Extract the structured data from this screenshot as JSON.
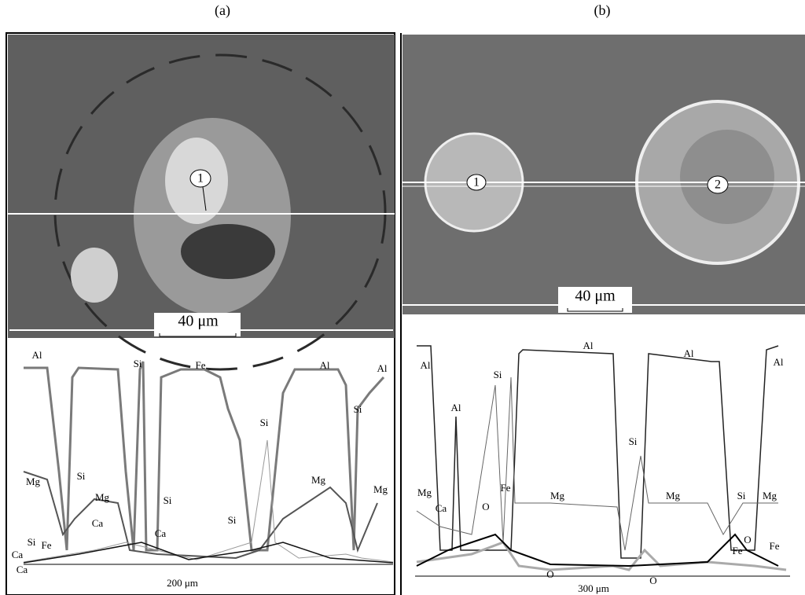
{
  "panels": [
    {
      "label": "(a)",
      "image": {
        "markers": [
          "1"
        ],
        "scale_bar": "40 μm"
      },
      "profile": {
        "labels": [
          "Al",
          "Si",
          "Fe",
          "Al",
          "Al",
          "Si",
          "Si",
          "Mg",
          "Si",
          "Mg",
          "Si",
          "Si",
          "Mg",
          "Mg",
          "Ca",
          "Ca",
          "Si",
          "Fe",
          "Ca",
          "Ca"
        ],
        "scale": "200 μm"
      }
    },
    {
      "label": "(b)",
      "image": {
        "markers": [
          "1",
          "2"
        ],
        "scale_bar": "40 μm"
      },
      "profile": {
        "labels": [
          "Al",
          "Al",
          "Al",
          "Al",
          "Si",
          "Al",
          "Si",
          "Mg",
          "Ca",
          "Fe",
          "O",
          "Mg",
          "Mg",
          "Si",
          "Mg",
          "O",
          "O",
          "Fe",
          "O",
          "Fe"
        ],
        "scale": "300 μm"
      }
    }
  ]
}
